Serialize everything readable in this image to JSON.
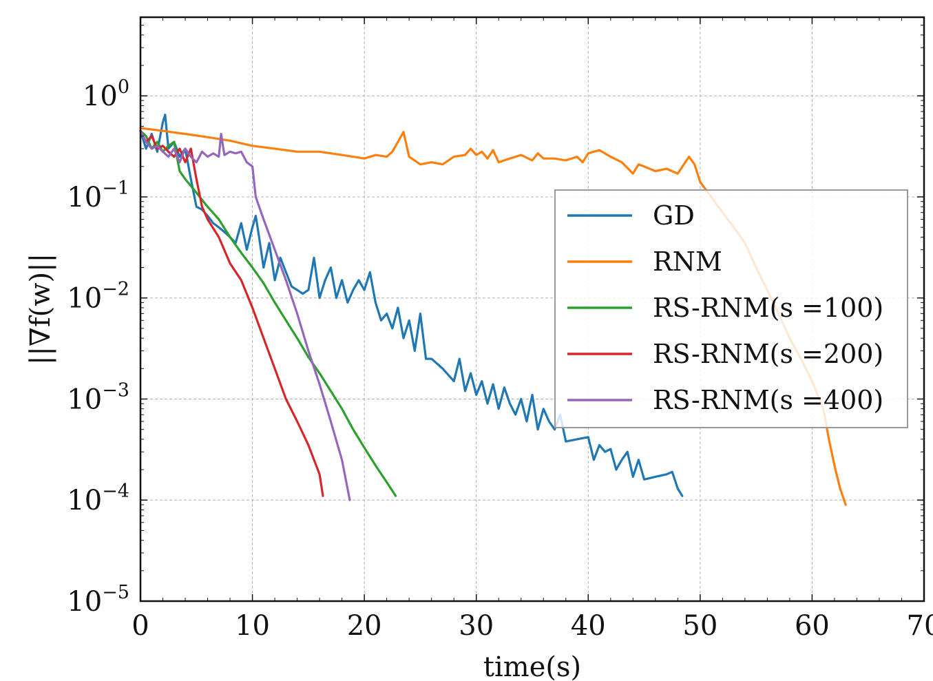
{
  "chart_data": {
    "type": "line",
    "xlabel": "time(s)",
    "ylabel": "||∇f(w)||",
    "xlim": [
      0,
      70
    ],
    "ylim": [
      1e-05,
      6
    ],
    "yscale": "log",
    "grid": true,
    "legend_position": "right",
    "x_ticks": [
      0,
      10,
      20,
      30,
      40,
      50,
      60,
      70
    ],
    "x_tick_labels": [
      "0",
      "10",
      "20",
      "30",
      "40",
      "50",
      "60",
      "70"
    ],
    "y_ticks": [
      1e-05,
      0.0001,
      0.001,
      0.01,
      0.1,
      1
    ],
    "y_tick_labels": [
      {
        "base": "10",
        "exp": "−5"
      },
      {
        "base": "10",
        "exp": "−4"
      },
      {
        "base": "10",
        "exp": "−3"
      },
      {
        "base": "10",
        "exp": "−2"
      },
      {
        "base": "10",
        "exp": "−1"
      },
      {
        "base": "10",
        "exp": "0"
      }
    ],
    "series": [
      {
        "name": "GD",
        "color": "#1f77b4",
        "x": [
          0,
          0.5,
          1,
          1.5,
          2,
          2.2,
          2.5,
          3,
          3.5,
          4,
          4.5,
          5,
          5.5,
          6,
          6.5,
          7,
          7.5,
          8,
          8.5,
          9,
          9.5,
          10,
          10.3,
          10.6,
          11,
          11.5,
          12,
          12.5,
          13,
          13.5,
          14,
          14.5,
          15,
          15.5,
          16,
          16.5,
          17,
          17.5,
          18,
          18.5,
          19,
          19.5,
          20,
          20.5,
          21,
          21.5,
          22,
          22.5,
          23,
          23.5,
          24,
          24.5,
          25,
          25.5,
          26,
          27,
          28,
          28.5,
          29,
          29.5,
          30,
          30.5,
          31,
          31.5,
          32,
          32.5,
          33,
          33.5,
          34,
          34.5,
          35,
          35.5,
          36,
          36.5,
          37,
          37.5,
          38,
          39,
          40,
          40.5,
          41,
          41.5,
          42,
          42.5,
          43,
          43.5,
          44,
          44.5,
          45,
          46,
          47,
          47.5,
          48,
          48.4
        ],
        "y": [
          0.45,
          0.3,
          0.42,
          0.28,
          0.55,
          0.65,
          0.3,
          0.35,
          0.25,
          0.3,
          0.15,
          0.08,
          0.075,
          0.065,
          0.055,
          0.05,
          0.045,
          0.04,
          0.035,
          0.055,
          0.03,
          0.05,
          0.065,
          0.04,
          0.02,
          0.035,
          0.015,
          0.025,
          0.018,
          0.013,
          0.012,
          0.011,
          0.012,
          0.025,
          0.01,
          0.015,
          0.02,
          0.01,
          0.015,
          0.009,
          0.012,
          0.015,
          0.012,
          0.018,
          0.009,
          0.006,
          0.007,
          0.005,
          0.008,
          0.004,
          0.006,
          0.003,
          0.007,
          0.0025,
          0.0025,
          0.002,
          0.0015,
          0.0025,
          0.0012,
          0.0018,
          0.0011,
          0.0015,
          0.0009,
          0.0014,
          0.0008,
          0.0013,
          0.0009,
          0.0007,
          0.001,
          0.0006,
          0.0011,
          0.0005,
          0.0008,
          0.0006,
          0.0005,
          0.0007,
          0.00038,
          0.0004,
          0.00042,
          0.00025,
          0.00035,
          0.0003,
          0.00032,
          0.0002,
          0.00025,
          0.0003,
          0.00017,
          0.00025,
          0.00016,
          0.00017,
          0.00018,
          0.00019,
          0.00013,
          0.00011
        ]
      },
      {
        "name": "RNM",
        "color": "#ff7f0e",
        "x": [
          0,
          2,
          4,
          6,
          8,
          10,
          12,
          14,
          16,
          18,
          19,
          20,
          21,
          22,
          22.5,
          23,
          23.5,
          24,
          25,
          26,
          27,
          28,
          29,
          29.5,
          30,
          30.5,
          31,
          31.5,
          32,
          32.5,
          33,
          34,
          35,
          35.5,
          36,
          37,
          38,
          39,
          39.5,
          40,
          41,
          42,
          43,
          44,
          44.5,
          45,
          46,
          47,
          48,
          49,
          49.5,
          50,
          51,
          52,
          53,
          54,
          55,
          56,
          57,
          58,
          59,
          60,
          61,
          61.5,
          62,
          62.5,
          63
        ],
        "y": [
          0.48,
          0.45,
          0.42,
          0.39,
          0.36,
          0.32,
          0.3,
          0.28,
          0.28,
          0.26,
          0.25,
          0.24,
          0.26,
          0.25,
          0.28,
          0.35,
          0.44,
          0.25,
          0.21,
          0.22,
          0.21,
          0.25,
          0.26,
          0.3,
          0.26,
          0.28,
          0.24,
          0.29,
          0.22,
          0.23,
          0.24,
          0.26,
          0.23,
          0.27,
          0.24,
          0.24,
          0.23,
          0.25,
          0.22,
          0.27,
          0.29,
          0.25,
          0.22,
          0.17,
          0.21,
          0.2,
          0.18,
          0.19,
          0.17,
          0.25,
          0.21,
          0.14,
          0.1,
          0.07,
          0.05,
          0.035,
          0.02,
          0.012,
          0.007,
          0.004,
          0.0025,
          0.0015,
          0.0008,
          0.0004,
          0.00022,
          0.00013,
          9e-05
        ]
      },
      {
        "name": "RS-RNM(s =100)",
        "color": "#2ca02c",
        "x": [
          0,
          0.5,
          1,
          1.5,
          2,
          2.5,
          3,
          3.5,
          4,
          5,
          6,
          7,
          8,
          9,
          10,
          11,
          12,
          13,
          14,
          15,
          16,
          17,
          18,
          19,
          20,
          21,
          22,
          22.8
        ],
        "y": [
          0.45,
          0.4,
          0.3,
          0.35,
          0.28,
          0.32,
          0.35,
          0.18,
          0.15,
          0.11,
          0.08,
          0.06,
          0.04,
          0.028,
          0.02,
          0.014,
          0.009,
          0.006,
          0.004,
          0.0026,
          0.0018,
          0.0012,
          0.0008,
          0.0005,
          0.00033,
          0.00022,
          0.00015,
          0.00011
        ]
      },
      {
        "name": "RS-RNM(s =200)",
        "color": "#d62728",
        "x": [
          0,
          0.5,
          1,
          1.5,
          2,
          2.5,
          3,
          3.5,
          4,
          4.5,
          5,
          5.5,
          6,
          7,
          8,
          9,
          10,
          11,
          12,
          13,
          14,
          15,
          16,
          16.3
        ],
        "y": [
          0.45,
          0.35,
          0.4,
          0.3,
          0.32,
          0.28,
          0.25,
          0.3,
          0.22,
          0.3,
          0.15,
          0.08,
          0.06,
          0.04,
          0.022,
          0.015,
          0.008,
          0.004,
          0.002,
          0.001,
          0.0006,
          0.00035,
          0.00018,
          0.00011
        ]
      },
      {
        "name": "RS-RNM(s =400)",
        "color": "#9467bd",
        "x": [
          0,
          0.5,
          1,
          1.5,
          2,
          2.5,
          3,
          3.5,
          4,
          4.5,
          5,
          5.5,
          6,
          6.5,
          7,
          7.2,
          7.5,
          8,
          8.5,
          9,
          9.5,
          10,
          10.3,
          11,
          12,
          13,
          14,
          15,
          16,
          17,
          18,
          18.7
        ],
        "y": [
          0.45,
          0.35,
          0.3,
          0.32,
          0.28,
          0.25,
          0.3,
          0.22,
          0.3,
          0.25,
          0.22,
          0.28,
          0.25,
          0.27,
          0.25,
          0.42,
          0.26,
          0.28,
          0.27,
          0.28,
          0.22,
          0.2,
          0.1,
          0.06,
          0.03,
          0.015,
          0.007,
          0.003,
          0.0014,
          0.0006,
          0.00025,
          0.0001
        ]
      }
    ]
  }
}
